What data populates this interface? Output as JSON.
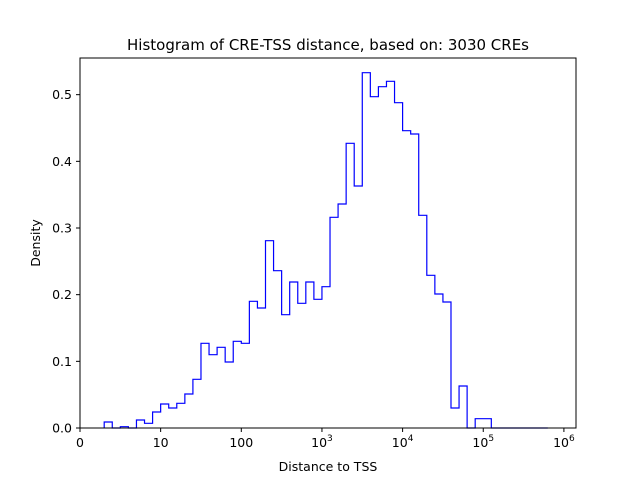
{
  "chart_data": {
    "type": "histogram",
    "title": "Histogram of CRE-TSS distance, based on: 3030 CREs",
    "xlabel": "Distance to TSS",
    "ylabel": "Density",
    "xscale": "log",
    "xlim": [
      0,
      6.15
    ],
    "ylim": [
      0,
      0.555
    ],
    "grid": false,
    "line_color": "#0000ff",
    "x_ticks": [
      {
        "pos": 0,
        "base": "0",
        "exp": ""
      },
      {
        "pos": 1,
        "base": "10",
        "exp": ""
      },
      {
        "pos": 2,
        "base": "100",
        "exp": ""
      },
      {
        "pos": 3,
        "base": "10",
        "exp": "3"
      },
      {
        "pos": 4,
        "base": "10",
        "exp": "4"
      },
      {
        "pos": 5,
        "base": "10",
        "exp": "5"
      },
      {
        "pos": 6,
        "base": "10",
        "exp": "6"
      }
    ],
    "y_ticks": [
      {
        "value": 0.0,
        "label": "0.0"
      },
      {
        "value": 0.1,
        "label": "0.1"
      },
      {
        "value": 0.2,
        "label": "0.2"
      },
      {
        "value": 0.3,
        "label": "0.3"
      },
      {
        "value": 0.4,
        "label": "0.4"
      },
      {
        "value": 0.5,
        "label": "0.5"
      }
    ],
    "bin_edges_log10": [
      0.3,
      0.4,
      0.5,
      0.6,
      0.7,
      0.8,
      0.9,
      1.0,
      1.1,
      1.2,
      1.3,
      1.4,
      1.5,
      1.6,
      1.7,
      1.8,
      1.9,
      2.0,
      2.1,
      2.2,
      2.3,
      2.4,
      2.5,
      2.6,
      2.7,
      2.8,
      2.9,
      3.0,
      3.1,
      3.2,
      3.3,
      3.4,
      3.5,
      3.6,
      3.7,
      3.8,
      3.9,
      4.0,
      4.1,
      4.2,
      4.3,
      4.4,
      4.5,
      4.6,
      4.7,
      4.8,
      4.9,
      5.0,
      5.1,
      5.2,
      5.3,
      5.4,
      5.5,
      5.6,
      5.7,
      5.8
    ],
    "densities": [
      0.009,
      0.0,
      0.002,
      0.0,
      0.012,
      0.007,
      0.024,
      0.036,
      0.03,
      0.037,
      0.051,
      0.073,
      0.127,
      0.11,
      0.121,
      0.099,
      0.13,
      0.127,
      0.19,
      0.18,
      0.281,
      0.236,
      0.17,
      0.219,
      0.187,
      0.219,
      0.193,
      0.212,
      0.316,
      0.336,
      0.427,
      0.363,
      0.533,
      0.497,
      0.512,
      0.52,
      0.488,
      0.446,
      0.441,
      0.319,
      0.229,
      0.201,
      0.189,
      0.03,
      0.063,
      0.0,
      0.014,
      0.014,
      0.0,
      0.0,
      0.0,
      0.0,
      0.0,
      0.0,
      0.0
    ]
  }
}
